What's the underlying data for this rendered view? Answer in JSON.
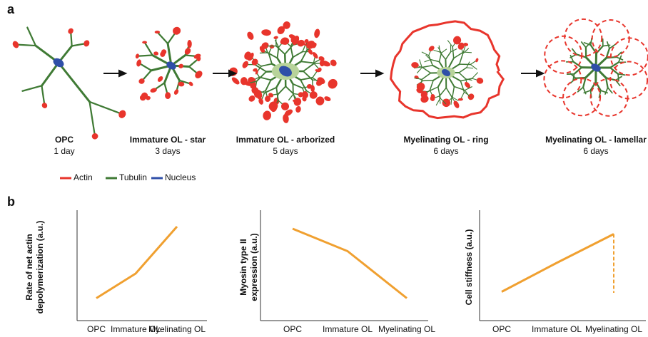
{
  "panel_a": {
    "label": "a",
    "stages": [
      {
        "name": "OPC",
        "time": "1 day"
      },
      {
        "name": "Immature OL - star",
        "time": "3 days"
      },
      {
        "name": "Immature OL - arborized",
        "time": "5 days"
      },
      {
        "name": "Myelinating OL - ring",
        "time": "6 days"
      },
      {
        "name": "Myelinating OL - lamellar",
        "time": "6 days"
      }
    ],
    "legend": [
      {
        "name": "Actin",
        "color": "#e8352c"
      },
      {
        "name": "Tubulin",
        "color": "#3f7a34"
      },
      {
        "name": "Nucleus",
        "color": "#2f4fa8"
      }
    ]
  },
  "panel_b": {
    "label": "b"
  },
  "chart_data": [
    {
      "type": "line",
      "y_label": [
        "Rate of net actin",
        "depolymerization (a.u.)"
      ],
      "categories": [
        "OPC",
        "Immature  OL",
        "Myelinating OL"
      ],
      "series": [
        {
          "color": "#f0a030",
          "values": [
            21,
            44,
            88
          ]
        }
      ],
      "ylim": [
        0,
        100
      ]
    },
    {
      "type": "line",
      "y_label": [
        "Myosin type II",
        "expression (a.u.)"
      ],
      "categories": [
        "OPC",
        "Immature  OL",
        "Myelinating OL"
      ],
      "series": [
        {
          "color": "#f0a030",
          "values": [
            86,
            65,
            21
          ]
        }
      ],
      "ylim": [
        0,
        100
      ]
    },
    {
      "type": "line",
      "y_label": [
        "Cell stiffness (a.u.)"
      ],
      "categories": [
        "OPC",
        "Immature  OL",
        "Myelinating OL"
      ],
      "series": [
        {
          "color": "#f0a030",
          "values": [
            27,
            54,
            81
          ]
        }
      ],
      "drop_line": 26,
      "ylim": [
        0,
        100
      ]
    }
  ]
}
